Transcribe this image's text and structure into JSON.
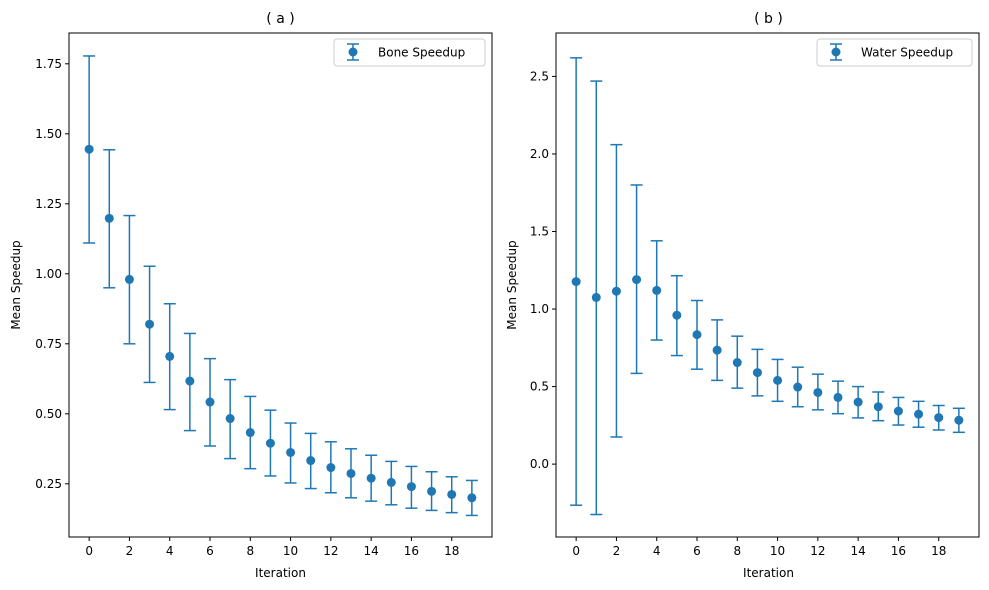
{
  "colors": {
    "series": "#1f77b4",
    "axis": "#000000",
    "legend_border": "#cccccc"
  },
  "chart_data": [
    {
      "type": "scatter",
      "title": "( a )",
      "xlabel": "Iteration",
      "ylabel": "Mean Speedup",
      "xlim": [
        -1,
        20
      ],
      "ylim": [
        0.06,
        1.86
      ],
      "xticks": [
        0,
        2,
        4,
        6,
        8,
        10,
        12,
        14,
        16,
        18
      ],
      "xtick_labels": [
        "0",
        "2",
        "4",
        "6",
        "8",
        "10",
        "12",
        "14",
        "16",
        "18"
      ],
      "yticks": [
        0.25,
        0.5,
        0.75,
        1.0,
        1.25,
        1.5,
        1.75
      ],
      "ytick_labels": [
        "0.25",
        "0.50",
        "0.75",
        "1.00",
        "1.25",
        "1.50",
        "1.75"
      ],
      "legend": "top-right",
      "grid": false,
      "series": [
        {
          "name": "Bone Speedup",
          "x": [
            0,
            1,
            2,
            3,
            4,
            5,
            6,
            7,
            8,
            9,
            10,
            11,
            12,
            13,
            14,
            15,
            16,
            17,
            18,
            19
          ],
          "y": [
            1.445,
            1.198,
            0.98,
            0.82,
            0.705,
            0.617,
            0.542,
            0.483,
            0.433,
            0.395,
            0.362,
            0.333,
            0.308,
            0.287,
            0.27,
            0.255,
            0.24,
            0.223,
            0.212,
            0.2
          ],
          "err_low": [
            1.11,
            0.95,
            0.75,
            0.612,
            0.515,
            0.44,
            0.385,
            0.34,
            0.304,
            0.278,
            0.253,
            0.233,
            0.218,
            0.2,
            0.188,
            0.175,
            0.163,
            0.155,
            0.147,
            0.137
          ],
          "err_high": [
            1.778,
            1.443,
            1.208,
            1.027,
            0.893,
            0.787,
            0.697,
            0.622,
            0.562,
            0.513,
            0.467,
            0.43,
            0.4,
            0.375,
            0.352,
            0.33,
            0.312,
            0.293,
            0.275,
            0.262
          ]
        }
      ]
    },
    {
      "type": "scatter",
      "title": "( b )",
      "xlabel": "Iteration",
      "ylabel": "Mean Speedup",
      "xlim": [
        -1,
        20
      ],
      "ylim": [
        -0.47,
        2.78
      ],
      "xticks": [
        0,
        2,
        4,
        6,
        8,
        10,
        12,
        14,
        16,
        18
      ],
      "xtick_labels": [
        "0",
        "2",
        "4",
        "6",
        "8",
        "10",
        "12",
        "14",
        "16",
        "18"
      ],
      "yticks": [
        0.0,
        0.5,
        1.0,
        1.5,
        2.0,
        2.5
      ],
      "ytick_labels": [
        "0.0",
        "0.5",
        "1.0",
        "1.5",
        "2.0",
        "2.5"
      ],
      "legend": "top-right",
      "grid": false,
      "series": [
        {
          "name": "Water Speedup",
          "x": [
            0,
            1,
            2,
            3,
            4,
            5,
            6,
            7,
            8,
            9,
            10,
            11,
            12,
            13,
            14,
            15,
            16,
            17,
            18,
            19
          ],
          "y": [
            1.177,
            1.075,
            1.115,
            1.19,
            1.12,
            0.96,
            0.835,
            0.735,
            0.655,
            0.59,
            0.54,
            0.497,
            0.462,
            0.43,
            0.4,
            0.37,
            0.342,
            0.322,
            0.3,
            0.283
          ],
          "err_low": [
            -0.265,
            -0.325,
            0.175,
            0.585,
            0.8,
            0.7,
            0.612,
            0.54,
            0.49,
            0.44,
            0.405,
            0.37,
            0.35,
            0.325,
            0.298,
            0.28,
            0.252,
            0.238,
            0.22,
            0.205
          ],
          "err_high": [
            2.62,
            2.47,
            2.06,
            1.8,
            1.44,
            1.215,
            1.055,
            0.93,
            0.825,
            0.74,
            0.675,
            0.625,
            0.58,
            0.535,
            0.5,
            0.465,
            0.43,
            0.405,
            0.378,
            0.36
          ]
        }
      ]
    }
  ]
}
